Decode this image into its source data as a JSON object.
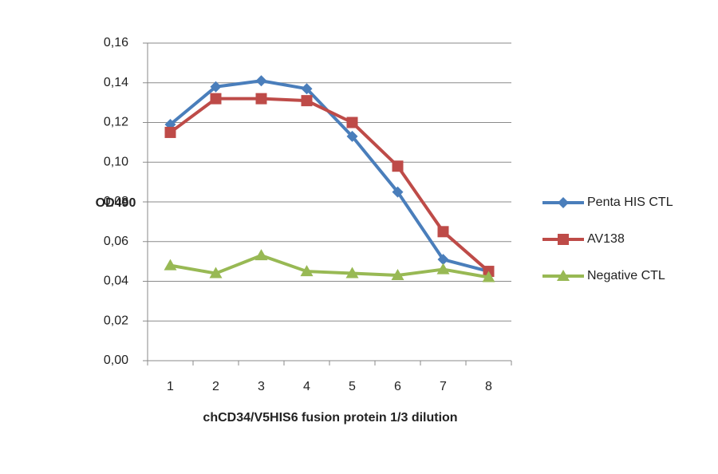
{
  "chart_data": {
    "type": "line",
    "x_label": "chCD34/V5HIS6 fusion protein 1/3 dilution",
    "y_label": "OD490",
    "categories": [
      "1",
      "2",
      "3",
      "4",
      "5",
      "6",
      "7",
      "8"
    ],
    "series": [
      {
        "name": "Penta HIS CTL",
        "color": "#4a7ebb",
        "marker": "diamond",
        "values": [
          0.119,
          0.138,
          0.141,
          0.137,
          0.113,
          0.085,
          0.051,
          0.045
        ]
      },
      {
        "name": "AV138",
        "color": "#be4b48",
        "marker": "square",
        "values": [
          0.115,
          0.132,
          0.132,
          0.131,
          0.12,
          0.098,
          0.065,
          0.045
        ]
      },
      {
        "name": "Negative CTL",
        "color": "#98b954",
        "marker": "triangle",
        "values": [
          0.048,
          0.044,
          0.053,
          0.045,
          0.044,
          0.043,
          0.046,
          0.042
        ]
      }
    ],
    "ylim": [
      0,
      0.16
    ],
    "yticks": [
      {
        "value": 0,
        "label": "0,00"
      },
      {
        "value": 0.02,
        "label": "0,02"
      },
      {
        "value": 0.04,
        "label": "0,04"
      },
      {
        "value": 0.06,
        "label": "0,06"
      },
      {
        "value": 0.08,
        "label": "0,08"
      },
      {
        "value": 0.1,
        "label": "0,10"
      },
      {
        "value": 0.12,
        "label": "0,12"
      },
      {
        "value": 0.14,
        "label": "0,14"
      },
      {
        "value": 0.16,
        "label": "0,16"
      }
    ],
    "grid": true,
    "legend": "right"
  }
}
